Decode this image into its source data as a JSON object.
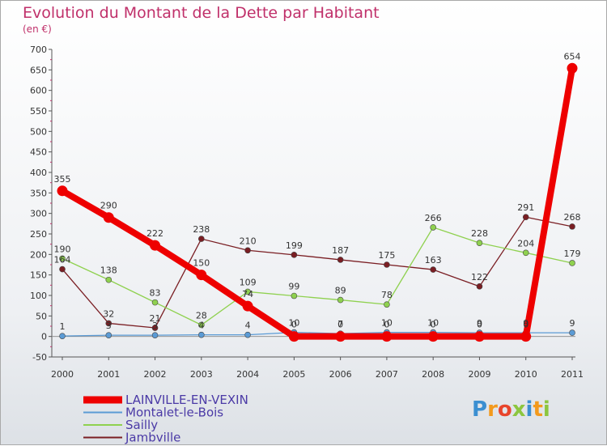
{
  "title": "Evolution du Montant de la Dette par Habitant",
  "unit": "(en €)",
  "logo": {
    "letters": [
      "P",
      "r",
      "o",
      "x",
      "i",
      "t",
      "i"
    ],
    "colors": [
      "#3b8fd1",
      "#f39a1d",
      "#e8452c",
      "#8cc63f",
      "#3b8fd1",
      "#f39a1d",
      "#8cc63f"
    ]
  },
  "chart_data": {
    "type": "line",
    "title": "Evolution du Montant de la Dette par Habitant",
    "ylabel": "(en €)",
    "xlabel": "",
    "x": [
      "2000",
      "2001",
      "2002",
      "2003",
      "2004",
      "2005",
      "2006",
      "2007",
      "2008",
      "2009",
      "2010",
      "2011"
    ],
    "ylim": [
      -50,
      700
    ],
    "yticks": [
      -50,
      0,
      50,
      100,
      150,
      200,
      250,
      300,
      350,
      400,
      450,
      500,
      550,
      600,
      650,
      700
    ],
    "grid": false,
    "legend_position": "bottom-left",
    "series": [
      {
        "name": "Jambville",
        "color": "#7a1e23",
        "width": 1.3,
        "marker": 3.5,
        "values": [
          164,
          32,
          21,
          238,
          210,
          199,
          187,
          175,
          163,
          122,
          291,
          268
        ],
        "labels": [
          "164",
          "32",
          "21",
          "238",
          "210",
          "199",
          "187",
          "175",
          "163",
          "122",
          "291",
          "268"
        ]
      },
      {
        "name": "Sailly",
        "color": "#8fd14f",
        "width": 1.3,
        "marker": 3.5,
        "values": [
          190,
          138,
          83,
          28,
          109,
          99,
          89,
          78,
          266,
          228,
          204,
          179
        ],
        "labels": [
          "190",
          "138",
          "83",
          "28",
          "109",
          "99",
          "89",
          "78",
          "266",
          "228",
          "204",
          "179"
        ]
      },
      {
        "name": "Montalet-le-Bois",
        "color": "#5b9bd5",
        "width": 1.3,
        "marker": 3.5,
        "values": [
          1,
          3,
          3,
          4,
          4,
          10,
          7,
          10,
          10,
          9,
          9,
          9
        ],
        "labels": [
          "1",
          "3",
          "3",
          "4",
          "4",
          "10",
          "7",
          "10",
          "10",
          "9",
          "9",
          "9"
        ]
      },
      {
        "name": "LAINVILLE-EN-VEXIN",
        "color": "#ee0000",
        "width": 8,
        "marker": 6.5,
        "values": [
          355,
          290,
          222,
          150,
          74,
          0,
          0,
          0,
          0,
          0,
          0,
          654
        ],
        "labels": [
          "355",
          "290",
          "222",
          "150",
          "74",
          "0",
          "0",
          "0",
          "0",
          "0",
          "0",
          "654"
        ]
      }
    ],
    "legend": [
      {
        "name": "LAINVILLE-EN-VEXIN",
        "color": "#ee0000",
        "thick": true
      },
      {
        "name": "Montalet-le-Bois",
        "color": "#5b9bd5",
        "thick": false
      },
      {
        "name": "Sailly",
        "color": "#8fd14f",
        "thick": false
      },
      {
        "name": "Jambville",
        "color": "#7a1e23",
        "thick": false
      }
    ]
  }
}
